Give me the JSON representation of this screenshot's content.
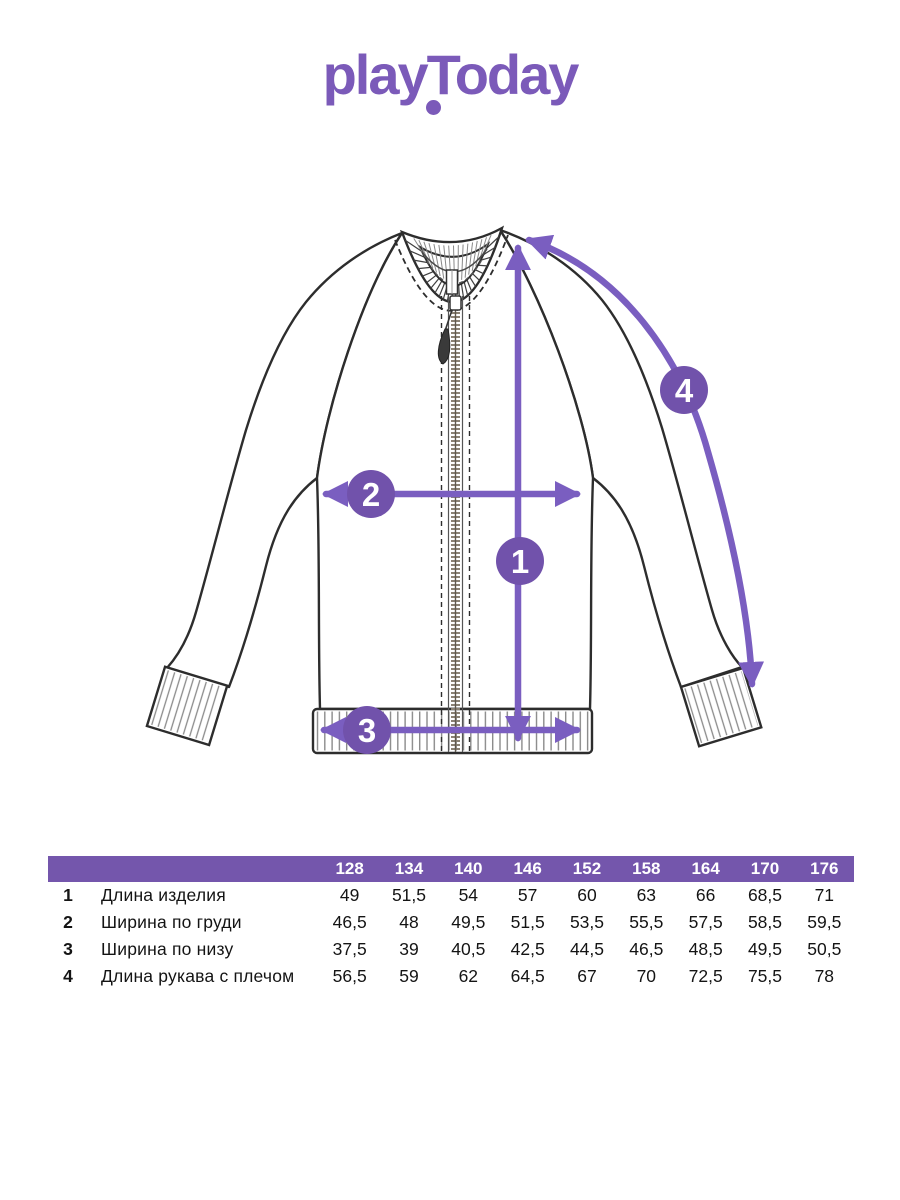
{
  "brand": {
    "logo": "playToday"
  },
  "diagram": {
    "markers": [
      {
        "label": "1"
      },
      {
        "label": "2"
      },
      {
        "label": "3"
      },
      {
        "label": "4"
      }
    ]
  },
  "size_table": {
    "sizes": [
      "128",
      "134",
      "140",
      "146",
      "152",
      "158",
      "164",
      "170",
      "176"
    ],
    "rows": [
      {
        "num": "1",
        "label": "Длина изделия",
        "values": [
          "49",
          "51,5",
          "54",
          "57",
          "60",
          "63",
          "66",
          "68,5",
          "71"
        ]
      },
      {
        "num": "2",
        "label": "Ширина по груди",
        "values": [
          "46,5",
          "48",
          "49,5",
          "51,5",
          "53,5",
          "55,5",
          "57,5",
          "58,5",
          "59,5"
        ]
      },
      {
        "num": "3",
        "label": "Ширина по низу",
        "values": [
          "37,5",
          "39",
          "40,5",
          "42,5",
          "44,5",
          "46,5",
          "48,5",
          "49,5",
          "50,5"
        ]
      },
      {
        "num": "4",
        "label": "Длина рукава с плечом",
        "values": [
          "56,5",
          "59",
          "62",
          "64,5",
          "67",
          "70",
          "72,5",
          "75,5",
          "78"
        ]
      }
    ]
  },
  "colors": {
    "brand_purple": "#7b5ab9",
    "header_purple": "#7456ac",
    "circle_purple": "#7152ab",
    "arrow_purple": "#7a5ec0"
  }
}
